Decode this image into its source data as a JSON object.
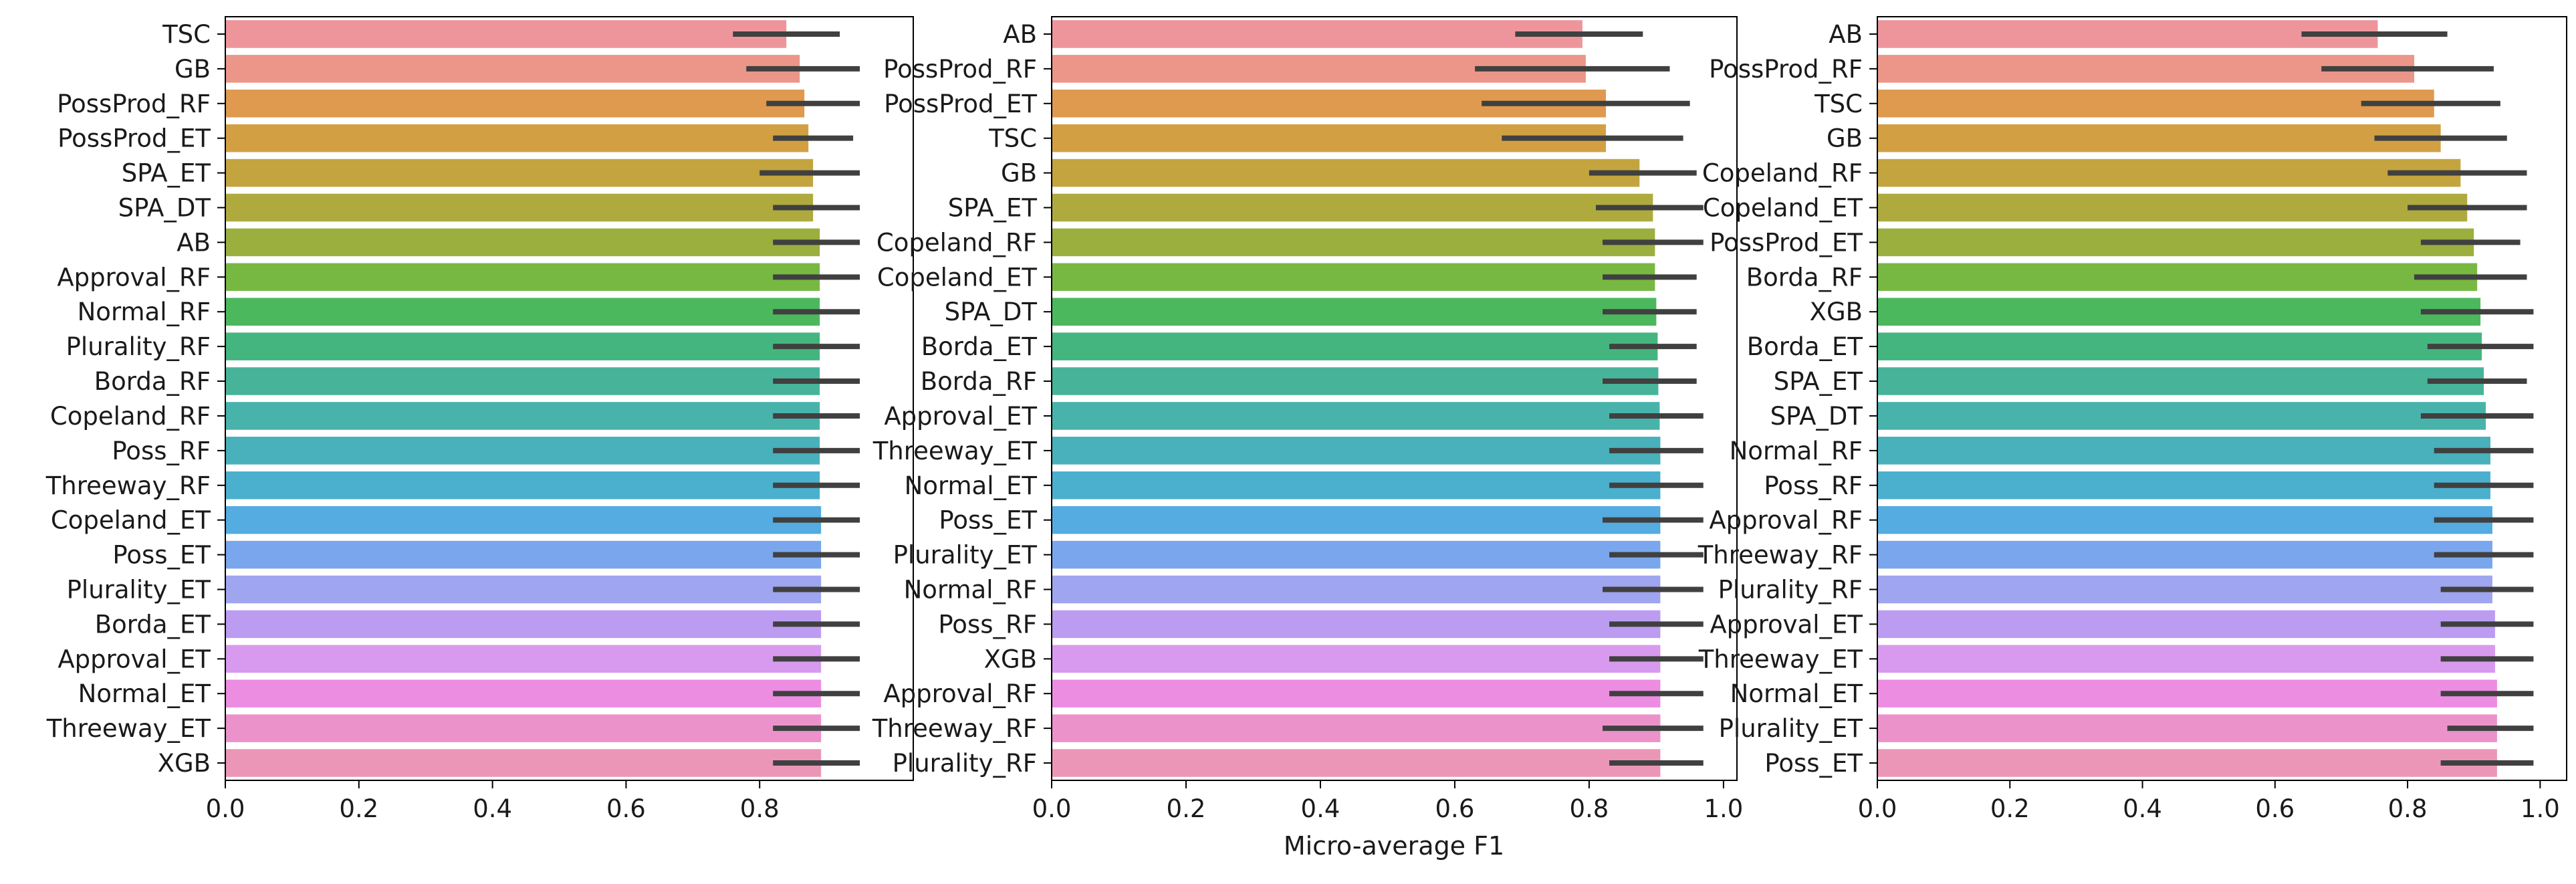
{
  "figure": {
    "xlabel": "Micro-average F1"
  },
  "chart_data": [
    {
      "type": "bar",
      "orientation": "horizontal",
      "xlim": [
        0,
        1.03
      ],
      "xticks": [
        0.0,
        0.2,
        0.4,
        0.6,
        0.8
      ],
      "xtick_labels": [
        "0.0",
        "0.2",
        "0.4",
        "0.6",
        "0.8"
      ],
      "grid": false,
      "categories": [
        "TSC",
        "GB",
        "PossProd_RF",
        "PossProd_ET",
        "SPA_ET",
        "SPA_DT",
        "AB",
        "Approval_RF",
        "Normal_RF",
        "Plurality_RF",
        "Borda_RF",
        "Copeland_RF",
        "Poss_RF",
        "Threeway_RF",
        "Copeland_ET",
        "Poss_ET",
        "Plurality_ET",
        "Borda_ET",
        "Approval_ET",
        "Normal_ET",
        "Threeway_ET",
        "XGB"
      ],
      "values": [
        0.84,
        0.86,
        0.867,
        0.873,
        0.88,
        0.88,
        0.89,
        0.89,
        0.89,
        0.89,
        0.89,
        0.89,
        0.89,
        0.89,
        0.892,
        0.892,
        0.892,
        0.892,
        0.892,
        0.892,
        0.892,
        0.892
      ],
      "ci_low": [
        0.76,
        0.78,
        0.81,
        0.82,
        0.8,
        0.82,
        0.82,
        0.82,
        0.82,
        0.82,
        0.82,
        0.82,
        0.82,
        0.82,
        0.82,
        0.82,
        0.82,
        0.82,
        0.82,
        0.82,
        0.82,
        0.82
      ],
      "ci_high": [
        0.92,
        0.95,
        0.95,
        0.94,
        0.95,
        0.95,
        0.95,
        0.95,
        0.95,
        0.95,
        0.95,
        0.95,
        0.95,
        0.95,
        0.95,
        0.95,
        0.95,
        0.95,
        0.95,
        0.95,
        0.95,
        0.95
      ]
    },
    {
      "type": "bar",
      "orientation": "horizontal",
      "xlim": [
        0,
        1.02
      ],
      "xticks": [
        0.0,
        0.2,
        0.4,
        0.6,
        0.8,
        1.0
      ],
      "xtick_labels": [
        "0.0",
        "0.2",
        "0.4",
        "0.6",
        "0.8",
        "1.0"
      ],
      "grid": false,
      "categories": [
        "AB",
        "PossProd_RF",
        "PossProd_ET",
        "TSC",
        "GB",
        "SPA_ET",
        "Copeland_RF",
        "Copeland_ET",
        "SPA_DT",
        "Borda_ET",
        "Borda_RF",
        "Approval_ET",
        "Threeway_ET",
        "Normal_ET",
        "Poss_ET",
        "Plurality_ET",
        "Normal_RF",
        "Poss_RF",
        "XGB",
        "Approval_RF",
        "Threeway_RF",
        "Plurality_RF"
      ],
      "values": [
        0.79,
        0.795,
        0.825,
        0.825,
        0.875,
        0.895,
        0.898,
        0.898,
        0.9,
        0.902,
        0.903,
        0.905,
        0.906,
        0.906,
        0.906,
        0.906,
        0.906,
        0.906,
        0.906,
        0.906,
        0.906,
        0.906
      ],
      "ci_low": [
        0.69,
        0.63,
        0.64,
        0.67,
        0.8,
        0.81,
        0.82,
        0.82,
        0.82,
        0.83,
        0.82,
        0.83,
        0.83,
        0.83,
        0.82,
        0.83,
        0.82,
        0.83,
        0.83,
        0.83,
        0.82,
        0.83
      ],
      "ci_high": [
        0.88,
        0.92,
        0.95,
        0.94,
        0.96,
        0.97,
        0.97,
        0.96,
        0.96,
        0.96,
        0.96,
        0.97,
        0.97,
        0.97,
        0.97,
        0.97,
        0.97,
        0.97,
        0.97,
        0.97,
        0.97,
        0.97
      ]
    },
    {
      "type": "bar",
      "orientation": "horizontal",
      "xlim": [
        0,
        1.04
      ],
      "xticks": [
        0.0,
        0.2,
        0.4,
        0.6,
        0.8,
        1.0
      ],
      "xtick_labels": [
        "0.0",
        "0.2",
        "0.4",
        "0.6",
        "0.8",
        "1.0"
      ],
      "grid": false,
      "categories": [
        "AB",
        "PossProd_RF",
        "TSC",
        "GB",
        "Copeland_RF",
        "Copeland_ET",
        "PossProd_ET",
        "Borda_RF",
        "XGB",
        "Borda_ET",
        "SPA_ET",
        "SPA_DT",
        "Normal_RF",
        "Poss_RF",
        "Approval_RF",
        "Threeway_RF",
        "Plurality_RF",
        "Approval_ET",
        "Threeway_ET",
        "Normal_ET",
        "Plurality_ET",
        "Poss_ET"
      ],
      "values": [
        0.755,
        0.81,
        0.84,
        0.85,
        0.88,
        0.89,
        0.9,
        0.905,
        0.91,
        0.912,
        0.915,
        0.918,
        0.925,
        0.925,
        0.928,
        0.928,
        0.928,
        0.932,
        0.932,
        0.935,
        0.935,
        0.935
      ],
      "ci_low": [
        0.64,
        0.67,
        0.73,
        0.75,
        0.77,
        0.8,
        0.82,
        0.81,
        0.82,
        0.83,
        0.83,
        0.82,
        0.84,
        0.84,
        0.84,
        0.84,
        0.85,
        0.85,
        0.85,
        0.85,
        0.86,
        0.85
      ],
      "ci_high": [
        0.86,
        0.93,
        0.94,
        0.95,
        0.98,
        0.98,
        0.97,
        0.98,
        0.99,
        0.99,
        0.98,
        0.99,
        0.99,
        0.99,
        0.99,
        0.99,
        0.99,
        0.99,
        0.99,
        0.99,
        0.99,
        0.99
      ]
    }
  ],
  "palette": [
    "#ee959c",
    "#eb9688",
    "#df9a4f",
    "#d2a043",
    "#c3a43e",
    "#afaa3e",
    "#9aaf3e",
    "#77b843",
    "#4cb85e",
    "#44b57e",
    "#47b49a",
    "#47b3ab",
    "#48b1bb",
    "#4ab0cd",
    "#54ace0",
    "#7aa6ed",
    "#a0a5f0",
    "#bc9cf1",
    "#d89aee",
    "#ec8de2",
    "#ec92cb",
    "#ec96b7"
  ],
  "error_color": "#404040"
}
